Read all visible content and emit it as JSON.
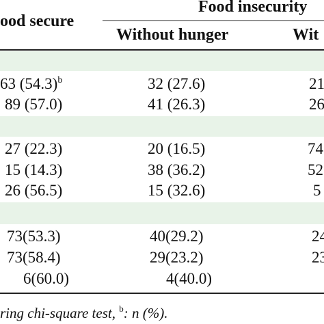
{
  "header": {
    "col1": "ood secure",
    "group": "Food insecurity",
    "col2": "Without hunger",
    "col3": "Wit"
  },
  "groups": [
    {
      "rows": [
        {
          "c1": "63 (54.3)",
          "c1_sup": "b",
          "c2": "32 (27.6)",
          "c3": "21"
        },
        {
          "c1": "89 (57.0)",
          "c1_sup": "",
          "c2": "41 (26.3)",
          "c3": "26"
        }
      ]
    },
    {
      "rows": [
        {
          "c1": "27 (22.3)",
          "c1_sup": "",
          "c2": "20 (16.5)",
          "c3": "74"
        },
        {
          "c1": "15 (14.3)",
          "c1_sup": "",
          "c2": "38 (36.2)",
          "c3": "52"
        },
        {
          "c1": "26 (56.5)",
          "c1_sup": "",
          "c2": "15 (32.6)",
          "c3": "5"
        }
      ]
    },
    {
      "rows": [
        {
          "c1": "73(53.3)",
          "c1_sup": "",
          "c2": "40(29.2)",
          "c3": "24"
        },
        {
          "c1": "73(58.4)",
          "c1_sup": "",
          "c2": "29(23.2)",
          "c3": "23"
        },
        {
          "c1": "6(60.0)",
          "c1_sup": "",
          "c2": "4(40.0)",
          "c3": ""
        }
      ]
    }
  ],
  "footnote": {
    "text_a": "ring chi-square test,",
    "sup": "b",
    "text_b": ": n (%)."
  },
  "colors": {
    "band": "#e8f3e8",
    "rule": "#222222"
  }
}
